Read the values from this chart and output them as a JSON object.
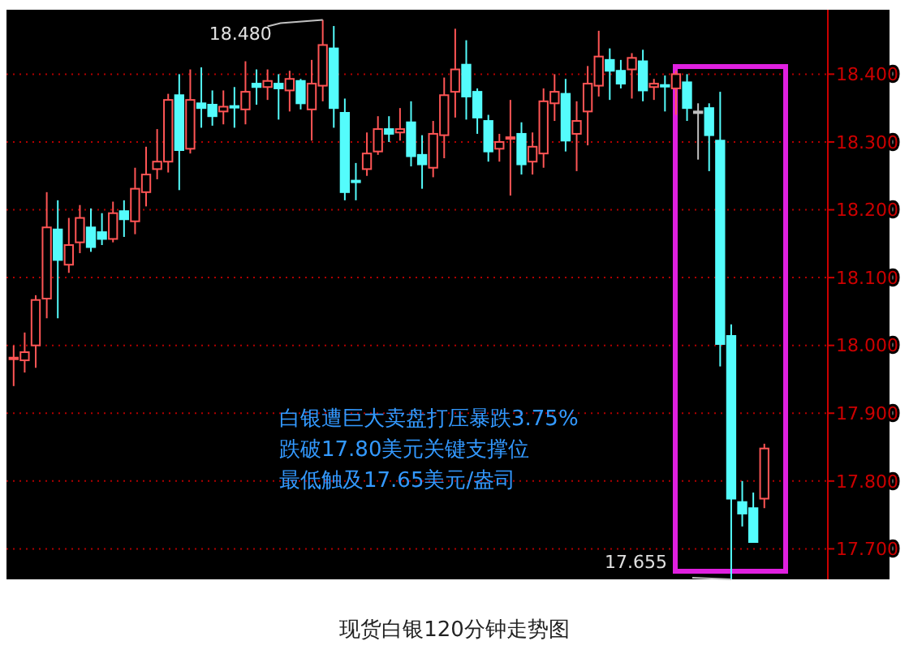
{
  "chart_data": {
    "type": "candlestick",
    "title": "现货白银120分钟走势图",
    "categories": [
      null,
      null,
      null,
      null,
      null,
      null,
      null,
      null,
      null,
      null,
      null,
      null,
      null,
      null,
      null,
      null,
      null,
      null,
      null,
      null,
      null,
      null,
      null,
      null,
      null,
      null,
      null,
      null,
      null,
      null,
      null,
      null,
      null,
      null,
      null,
      null,
      null,
      null,
      null,
      null,
      null,
      null,
      null,
      null,
      null,
      null,
      null,
      null,
      null,
      null,
      null,
      null,
      null,
      null,
      null,
      null,
      null,
      null,
      null,
      null,
      null,
      null,
      null,
      null,
      null,
      null,
      null,
      null,
      null
    ],
    "ohlc": [
      [
        17.982,
        18.0,
        17.94,
        17.982
      ],
      [
        17.978,
        18.019,
        17.96,
        17.99
      ],
      [
        18.0,
        18.074,
        17.967,
        18.067
      ],
      [
        18.069,
        18.226,
        18.04,
        18.174
      ],
      [
        18.171,
        18.214,
        18.04,
        18.126
      ],
      [
        18.119,
        18.188,
        18.107,
        18.148
      ],
      [
        18.152,
        18.207,
        18.136,
        18.188
      ],
      [
        18.174,
        18.202,
        18.138,
        18.145
      ],
      [
        18.167,
        18.195,
        18.148,
        18.157
      ],
      [
        18.157,
        18.212,
        18.152,
        18.195
      ],
      [
        18.198,
        18.214,
        18.16,
        18.186
      ],
      [
        18.183,
        18.262,
        18.164,
        18.231
      ],
      [
        18.226,
        18.293,
        18.205,
        18.252
      ],
      [
        18.26,
        18.319,
        18.245,
        18.271
      ],
      [
        18.271,
        18.371,
        18.255,
        18.362
      ],
      [
        18.369,
        18.4,
        18.229,
        18.288
      ],
      [
        18.29,
        18.407,
        18.283,
        18.362
      ],
      [
        18.357,
        18.41,
        18.321,
        18.35
      ],
      [
        18.355,
        18.376,
        18.324,
        18.338
      ],
      [
        18.345,
        18.376,
        18.326,
        18.352
      ],
      [
        18.353,
        18.381,
        18.321,
        18.352
      ],
      [
        18.348,
        18.419,
        18.326,
        18.374
      ],
      [
        18.386,
        18.407,
        18.355,
        18.381
      ],
      [
        18.381,
        18.407,
        18.362,
        18.39
      ],
      [
        18.386,
        18.4,
        18.333,
        18.379
      ],
      [
        18.376,
        18.405,
        18.345,
        18.393
      ],
      [
        18.39,
        18.393,
        18.348,
        18.357
      ],
      [
        18.348,
        18.421,
        18.302,
        18.386
      ],
      [
        18.383,
        18.48,
        18.36,
        18.443
      ],
      [
        18.438,
        18.471,
        18.321,
        18.35
      ],
      [
        18.343,
        18.364,
        18.214,
        18.226
      ],
      [
        18.243,
        18.269,
        18.214,
        18.241
      ],
      [
        18.26,
        18.314,
        18.25,
        18.283
      ],
      [
        18.286,
        18.338,
        18.281,
        18.319
      ],
      [
        18.319,
        18.338,
        18.3,
        18.312
      ],
      [
        18.314,
        18.35,
        18.302,
        18.319
      ],
      [
        18.329,
        18.36,
        18.264,
        18.279
      ],
      [
        18.281,
        18.31,
        18.231,
        18.267
      ],
      [
        18.262,
        18.331,
        18.248,
        18.312
      ],
      [
        18.31,
        18.395,
        18.276,
        18.369
      ],
      [
        18.374,
        18.467,
        18.336,
        18.407
      ],
      [
        18.414,
        18.45,
        18.333,
        18.367
      ],
      [
        18.374,
        18.379,
        18.312,
        18.336
      ],
      [
        18.331,
        18.34,
        18.271,
        18.286
      ],
      [
        18.29,
        18.312,
        18.271,
        18.3
      ],
      [
        18.305,
        18.362,
        18.221,
        18.307
      ],
      [
        18.312,
        18.329,
        18.252,
        18.267
      ],
      [
        18.271,
        18.314,
        18.252,
        18.293
      ],
      [
        18.283,
        18.379,
        18.262,
        18.36
      ],
      [
        18.357,
        18.4,
        18.331,
        18.374
      ],
      [
        18.371,
        18.393,
        18.286,
        18.302
      ],
      [
        18.312,
        18.36,
        18.257,
        18.331
      ],
      [
        18.345,
        18.412,
        18.295,
        18.386
      ],
      [
        18.383,
        18.464,
        18.367,
        18.426
      ],
      [
        18.421,
        18.438,
        18.362,
        18.405
      ],
      [
        18.405,
        18.421,
        18.379,
        18.386
      ],
      [
        18.407,
        18.431,
        18.364,
        18.424
      ],
      [
        18.419,
        18.436,
        18.36,
        18.376
      ],
      [
        18.381,
        18.393,
        18.362,
        18.386
      ],
      [
        18.384,
        18.398,
        18.345,
        18.383
      ],
      [
        18.379,
        18.405,
        18.34,
        18.4
      ],
      [
        18.388,
        18.4,
        18.331,
        18.35
      ],
      [
        18.345,
        18.357,
        18.274,
        18.345
      ],
      [
        18.35,
        18.357,
        18.257,
        18.31
      ],
      [
        18.302,
        18.374,
        17.969,
        18.002
      ],
      [
        18.014,
        18.031,
        17.655,
        17.774
      ],
      [
        17.769,
        17.8,
        17.733,
        17.752
      ],
      [
        17.76,
        17.783,
        17.71,
        17.71
      ],
      [
        17.774,
        17.855,
        17.76,
        17.848
      ]
    ],
    "colors": [
      "#ff5555",
      "#ff5555",
      "#ff5555",
      "#ff5555",
      "#54fcfc",
      "#ff5555",
      "#ff5555",
      "#54fcfc",
      "#54fcfc",
      "#ff5555",
      "#54fcfc",
      "#ff5555",
      "#ff5555",
      "#ff5555",
      "#ff5555",
      "#54fcfc",
      "#ff5555",
      "#54fcfc",
      "#54fcfc",
      "#ff5555",
      "#54fcfc",
      "#ff5555",
      "#54fcfc",
      "#ff5555",
      "#54fcfc",
      "#ff5555",
      "#54fcfc",
      "#ff5555",
      "#ff5555",
      "#54fcfc",
      "#54fcfc",
      "#54fcfc",
      "#ff5555",
      "#ff5555",
      "#54fcfc",
      "#ff5555",
      "#54fcfc",
      "#54fcfc",
      "#ff5555",
      "#ff5555",
      "#ff5555",
      "#54fcfc",
      "#54fcfc",
      "#54fcfc",
      "#ff5555",
      "#ff5555",
      "#54fcfc",
      "#ff5555",
      "#ff5555",
      "#ff5555",
      "#54fcfc",
      "#ff5555",
      "#ff5555",
      "#ff5555",
      "#54fcfc",
      "#54fcfc",
      "#ff5555",
      "#54fcfc",
      "#ff5555",
      "#54fcfc",
      "#ff5555",
      "#54fcfc",
      "#c0c0c0",
      "#54fcfc",
      "#54fcfc",
      "#54fcfc",
      "#54fcfc",
      "#54fcfc",
      "#ff5555"
    ],
    "ylim": [
      17.655,
      18.495
    ],
    "yticks": [
      {
        "value": 17.7,
        "label": "17.700"
      },
      {
        "value": 17.8,
        "label": "17.800"
      },
      {
        "value": 17.9,
        "label": "17.900"
      },
      {
        "value": 18.0,
        "label": "18.000"
      },
      {
        "value": 18.1,
        "label": "18.100"
      },
      {
        "value": 18.2,
        "label": "18.200"
      },
      {
        "value": 18.3,
        "label": "18.300"
      },
      {
        "value": 18.4,
        "label": "18.400"
      }
    ],
    "grid": "y",
    "annotations": [
      "18.480",
      "17.655",
      "白银遭巨大卖盘打压暴跌3.75%",
      "跌破17.80美元关键支撑位",
      "最低触及17.65美元/盎司"
    ]
  }
}
